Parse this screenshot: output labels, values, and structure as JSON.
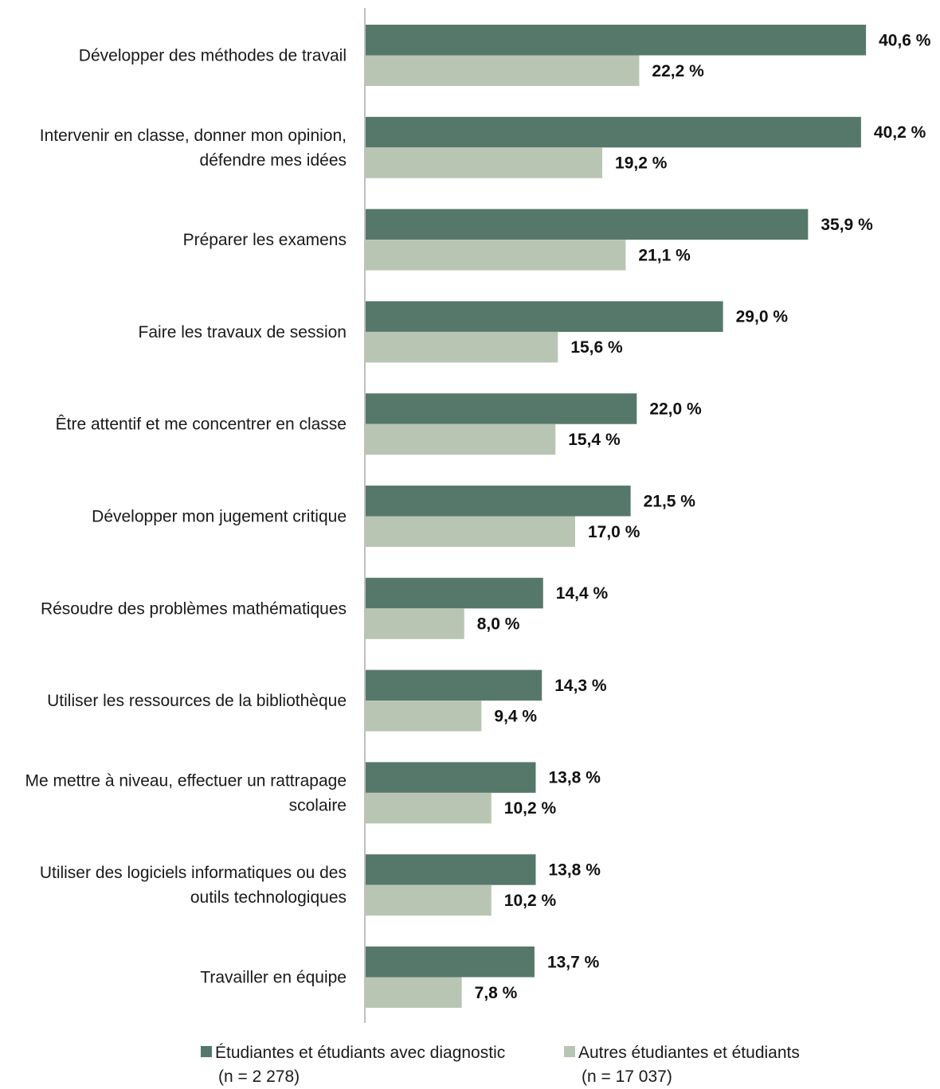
{
  "chart_data": {
    "type": "bar",
    "orientation": "horizontal",
    "categories": [
      [
        "Développer des méthodes de travail"
      ],
      [
        "Intervenir en classe, donner mon opinion,",
        "défendre mes idées"
      ],
      [
        "Préparer les examens"
      ],
      [
        "Faire les travaux de session"
      ],
      [
        "Être attentif et me concentrer en classe"
      ],
      [
        "Développer mon jugement critique"
      ],
      [
        "Résoudre des problèmes mathématiques"
      ],
      [
        "Utiliser les ressources de la bibliothèque"
      ],
      [
        "Me mettre à niveau, effectuer un rattrapage",
        "scolaire"
      ],
      [
        "Utiliser des logiciels informatiques ou des",
        "outils technologiques"
      ],
      [
        "Travailler en équipe"
      ]
    ],
    "series": [
      {
        "name": "Étudiantes et étudiants avec diagnostic",
        "name_sub": "(n = 2 278)",
        "color": "#56786a",
        "values": [
          40.6,
          40.2,
          35.9,
          29.0,
          22.0,
          21.5,
          14.4,
          14.3,
          13.8,
          13.8,
          13.7
        ],
        "labels": [
          "40,6 %",
          "40,2 %",
          "35,9 %",
          "29,0 %",
          "22,0 %",
          "21,5 %",
          "14,4 %",
          "14,3 %",
          "13,8 %",
          "13,8 %",
          "13,7 %"
        ]
      },
      {
        "name": "Autres étudiantes et étudiants",
        "name_sub": "(n = 17 037)",
        "color": "#b9c5b3",
        "values": [
          22.2,
          19.2,
          21.1,
          15.6,
          15.4,
          17.0,
          8.0,
          9.4,
          10.2,
          10.2,
          7.8
        ],
        "labels": [
          "22,2 %",
          "19,2 %",
          "21,1 %",
          "15,6 %",
          "15,4 %",
          "17,0 %",
          "8,0 %",
          "9,4 %",
          "10,2 %",
          "10,2 %",
          "7,8 %"
        ]
      }
    ],
    "xlim": [
      0,
      45
    ],
    "grid": false,
    "legend_position": "bottom"
  }
}
